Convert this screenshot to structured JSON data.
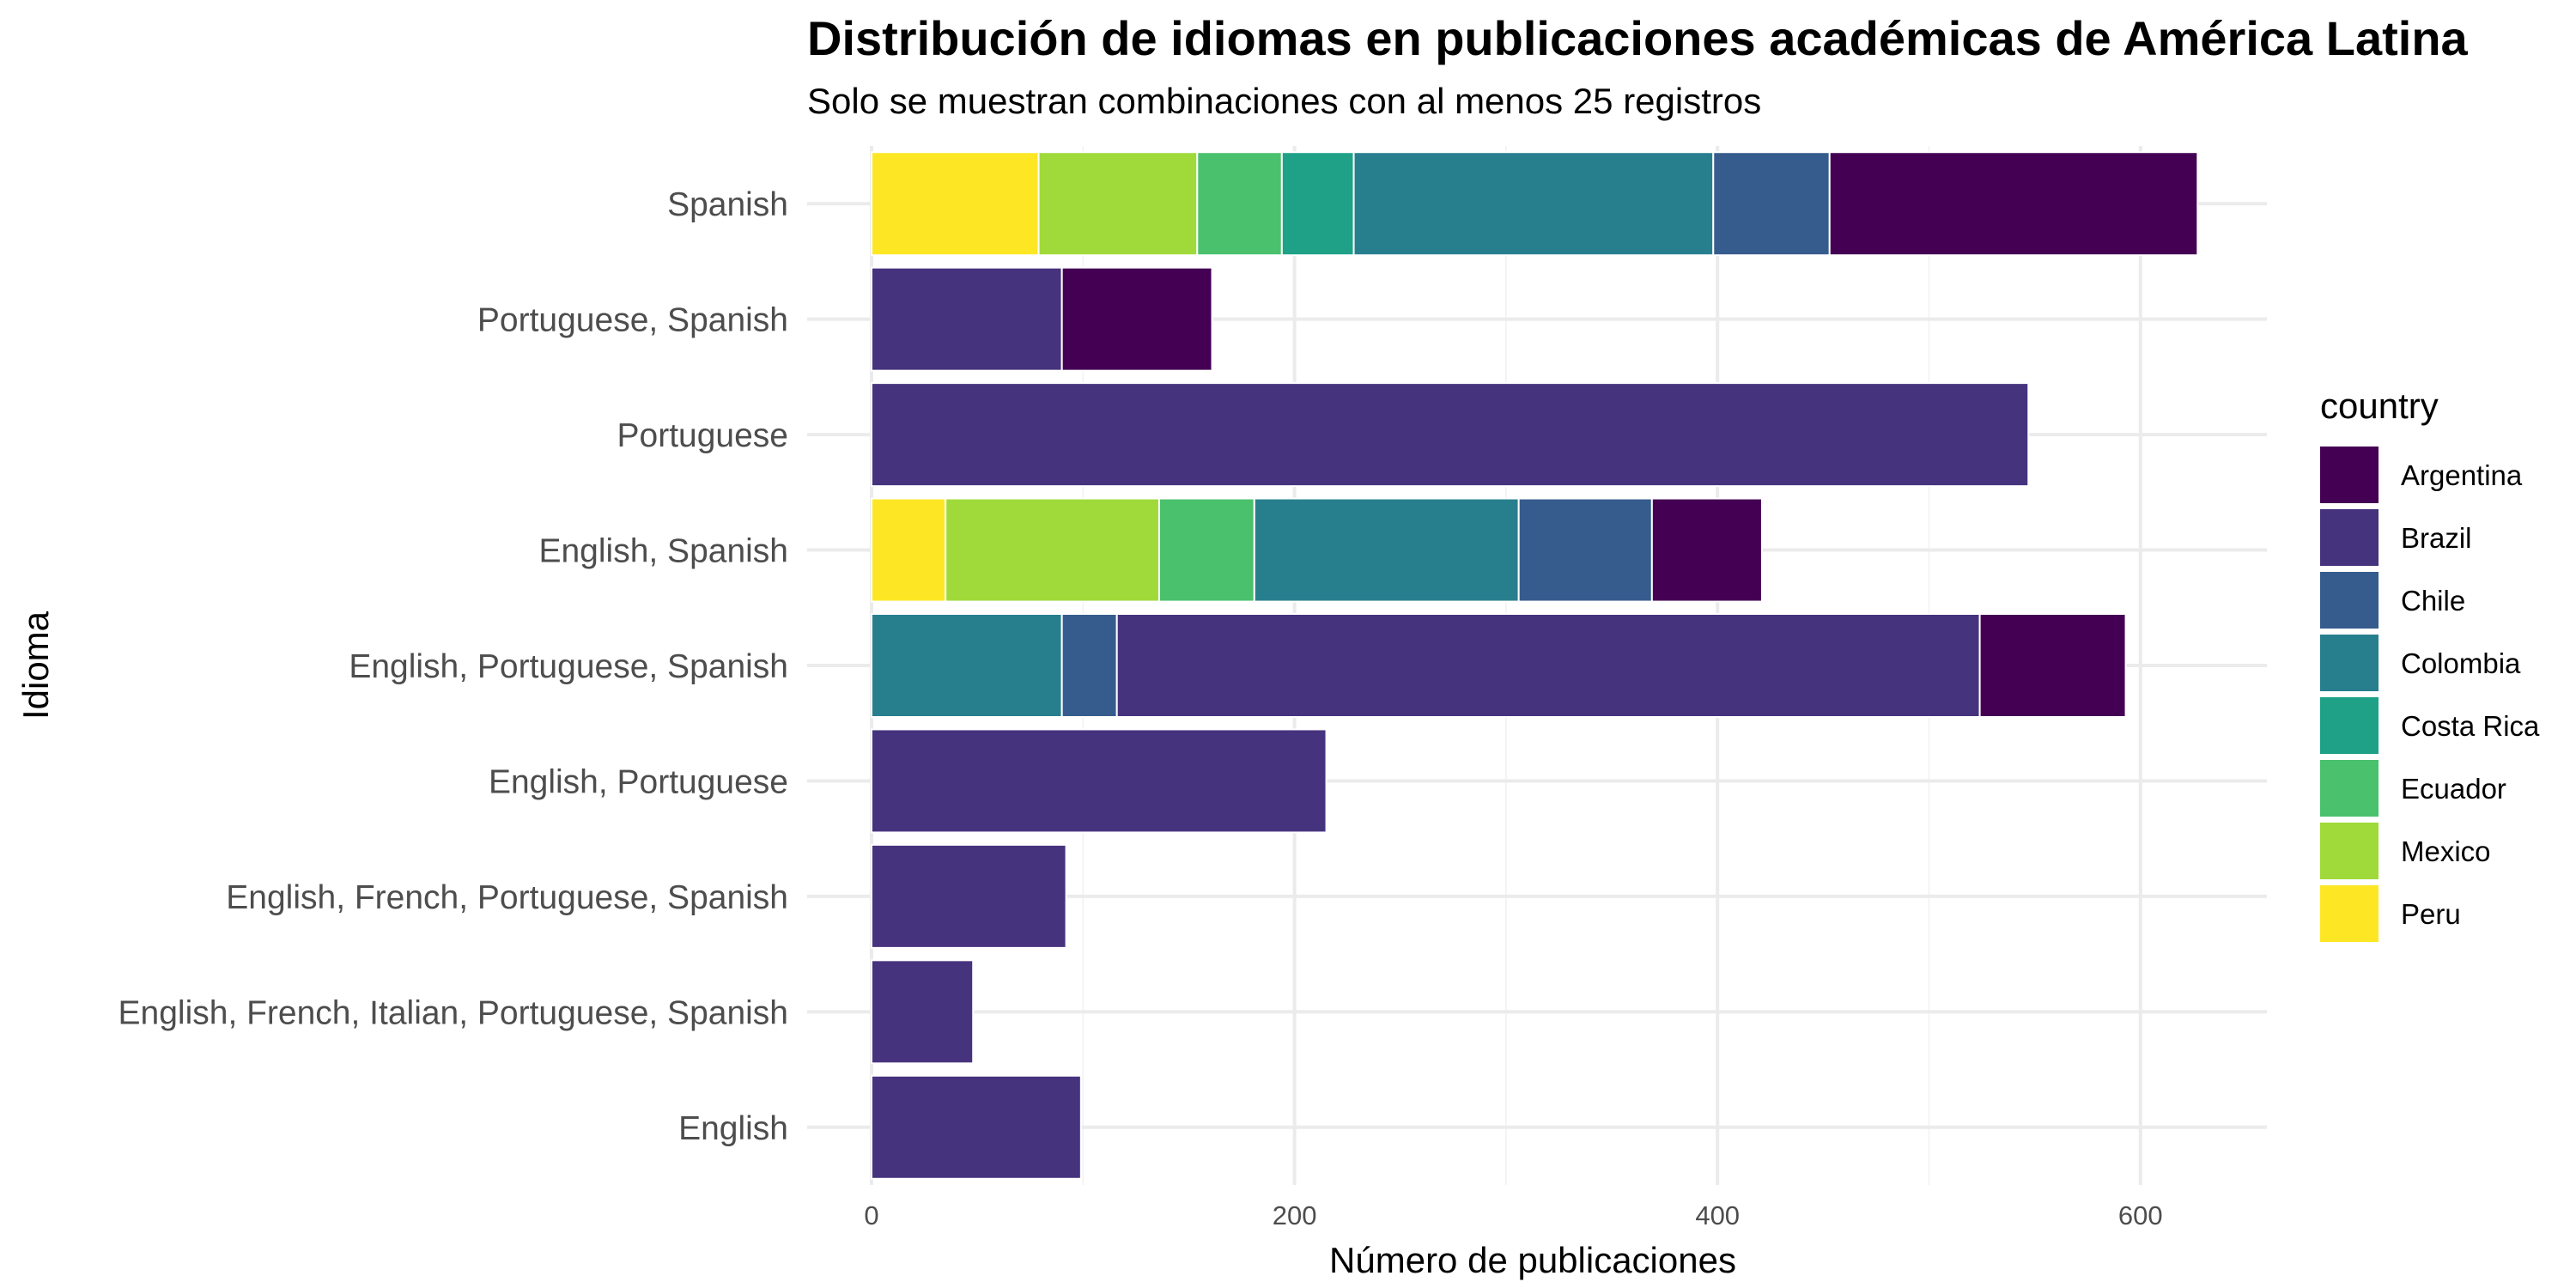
{
  "chart_data": {
    "type": "bar",
    "orientation": "horizontal",
    "stacked": true,
    "title": "Distribución de idiomas en publicaciones académicas de América Latina",
    "subtitle": "Solo se muestran combinaciones con al menos 25 registros",
    "xlabel": "Número de publicaciones",
    "ylabel": "Idioma",
    "xlim": [
      0,
      660
    ],
    "x_ticks": [
      0,
      200,
      400,
      600
    ],
    "grid": true,
    "legend": {
      "title": "country",
      "position": "right"
    },
    "categories": [
      "Spanish",
      "Portuguese, Spanish",
      "Portuguese",
      "English, Spanish",
      "English, Portuguese, Spanish",
      "English, Portuguese",
      "English, French, Portuguese, Spanish",
      "English, French, Italian, Portuguese, Spanish",
      "English"
    ],
    "series": [
      {
        "name": "Argentina",
        "color": "#440154",
        "values": [
          174,
          71,
          0,
          52,
          69,
          0,
          0,
          0,
          0
        ]
      },
      {
        "name": "Brazil",
        "color": "#46337E",
        "values": [
          0,
          90,
          547,
          0,
          408,
          215,
          92,
          48,
          99
        ]
      },
      {
        "name": "Chile",
        "color": "#365C8D",
        "values": [
          55,
          0,
          0,
          63,
          26,
          0,
          0,
          0,
          0
        ]
      },
      {
        "name": "Colombia",
        "color": "#277F8E",
        "values": [
          170,
          0,
          0,
          125,
          90,
          0,
          0,
          0,
          0
        ]
      },
      {
        "name": "Costa Rica",
        "color": "#1FA187",
        "values": [
          34,
          0,
          0,
          0,
          0,
          0,
          0,
          0,
          0
        ]
      },
      {
        "name": "Ecuador",
        "color": "#4AC16D",
        "values": [
          40,
          0,
          0,
          45,
          0,
          0,
          0,
          0,
          0
        ]
      },
      {
        "name": "Mexico",
        "color": "#9FDA3A",
        "values": [
          75,
          0,
          0,
          101,
          0,
          0,
          0,
          0,
          0
        ]
      },
      {
        "name": "Peru",
        "color": "#FDE725",
        "values": [
          79,
          0,
          0,
          35,
          0,
          0,
          0,
          0,
          0
        ]
      }
    ]
  }
}
